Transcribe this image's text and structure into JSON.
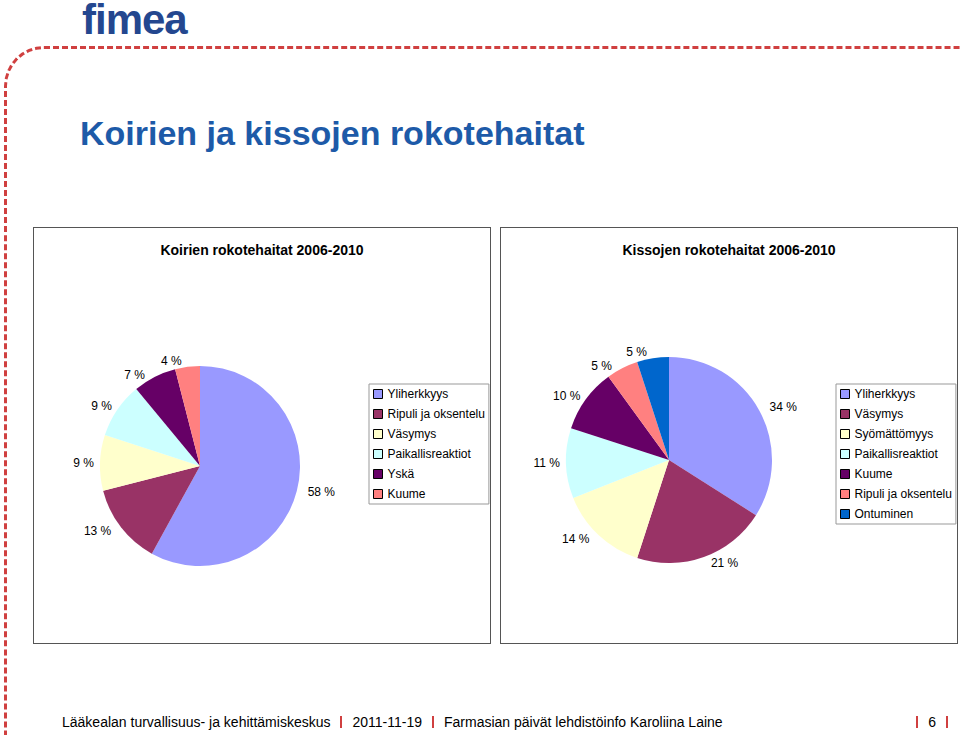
{
  "page": {
    "logo": "fimea",
    "title": "Koirien ja kissojen rokotehaitat",
    "footer": {
      "organization": "Lääkealan turvallisuus- ja kehittämiskeskus",
      "date": "2011-11-19",
      "event": "Farmasian päivät lehdistöinfo Karoliina Laine",
      "page_number": 6
    }
  },
  "chart_data": [
    {
      "type": "pie",
      "title": "Koirien rokotehaitat 2006-2010",
      "categories": [
        "Yliherkkyys",
        "Ripuli ja oksentelu",
        "Väsymys",
        "Paikallisreaktiot",
        "Yskä",
        "Kuume"
      ],
      "values": [
        58,
        13,
        9,
        9,
        7,
        4
      ],
      "value_labels": [
        "58 %",
        "13 %",
        "9 %",
        "9 %",
        "7 %",
        "4 %"
      ],
      "colors": [
        "#9999ff",
        "#993366",
        "#ffffcc",
        "#ccffff",
        "#660066",
        "#ff8080"
      ],
      "legend": "right",
      "data_labels": true
    },
    {
      "type": "pie",
      "title": "Kissojen rokotehaitat 2006-2010",
      "categories": [
        "Yliherkkyys",
        "Väsymys",
        "Syömättömyys",
        "Paikallisreaktiot",
        "Kuume",
        "Ripuli ja oksentelu",
        "Ontuminen"
      ],
      "values": [
        34,
        21,
        14,
        11,
        10,
        5,
        5
      ],
      "value_labels": [
        "34 %",
        "21 %",
        "14 %",
        "11 %",
        "10 %",
        "5 %",
        "5 %"
      ],
      "colors": [
        "#9999ff",
        "#993366",
        "#ffffcc",
        "#ccffff",
        "#660066",
        "#ff8080",
        "#0066cc"
      ],
      "legend": "right",
      "data_labels": true
    }
  ]
}
